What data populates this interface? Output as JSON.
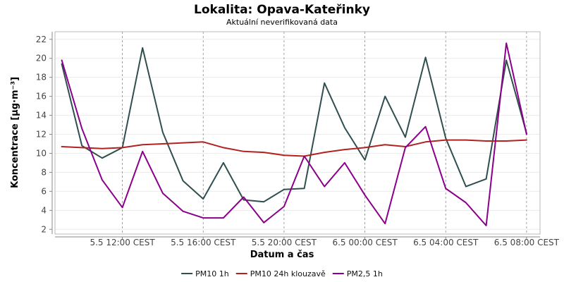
{
  "chart_data": {
    "type": "line",
    "title": "Lokalita: Opava-Kateřinky",
    "subtitle": "Aktuální neverifikovaná data",
    "xlabel": "Datum a čas",
    "ylabel": "Koncentrace [µg·m⁻³]",
    "ylim": [
      1.5,
      22.8
    ],
    "y_ticks": [
      2,
      4,
      6,
      8,
      10,
      12,
      14,
      16,
      18,
      20,
      22
    ],
    "x": [
      "2024-05-05T09:00",
      "2024-05-05T10:00",
      "2024-05-05T11:00",
      "2024-05-05T12:00",
      "2024-05-05T13:00",
      "2024-05-05T14:00",
      "2024-05-05T15:00",
      "2024-05-05T16:00",
      "2024-05-05T17:00",
      "2024-05-05T18:00",
      "2024-05-05T19:00",
      "2024-05-05T20:00",
      "2024-05-05T21:00",
      "2024-05-05T22:00",
      "2024-05-05T23:00",
      "2024-05-06T00:00",
      "2024-05-06T01:00",
      "2024-05-06T02:00",
      "2024-05-06T03:00",
      "2024-05-06T04:00",
      "2024-05-06T05:00",
      "2024-05-06T06:00",
      "2024-05-06T07:00",
      "2024-05-06T08:00"
    ],
    "xlim": [
      "2024-05-05T08:40",
      "2024-05-06T08:40"
    ],
    "x_ticks": [
      {
        "x": "2024-05-05T12:00",
        "label": "5.5 12:00 CEST"
      },
      {
        "x": "2024-05-05T16:00",
        "label": "5.5 16:00 CEST"
      },
      {
        "x": "2024-05-05T20:00",
        "label": "5.5 20:00 CEST"
      },
      {
        "x": "2024-05-06T00:00",
        "label": "6.5 00:00 CEST"
      },
      {
        "x": "2024-05-06T04:00",
        "label": "6.5 04:00 CEST"
      },
      {
        "x": "2024-05-06T08:00",
        "label": "6.5 08:00 CEST"
      }
    ],
    "grid": true,
    "legend_position": "bottom",
    "series": [
      {
        "name": "PM10 1h",
        "color": "#2f4f4f",
        "values": [
          19.4,
          10.8,
          9.5,
          10.6,
          21.1,
          12.2,
          7.1,
          5.2,
          9.0,
          5.1,
          4.9,
          6.2,
          6.3,
          17.4,
          12.7,
          9.3,
          16.0,
          11.7,
          20.1,
          11.6,
          6.5,
          7.3,
          19.8,
          12.1
        ]
      },
      {
        "name": "PM10 24h klouzavě",
        "color": "#b22222",
        "values": [
          10.7,
          10.6,
          10.5,
          10.6,
          10.9,
          11.0,
          11.1,
          11.2,
          10.6,
          10.2,
          10.1,
          9.8,
          9.7,
          10.1,
          10.4,
          10.6,
          10.9,
          10.7,
          11.2,
          11.4,
          11.4,
          11.3,
          11.3,
          11.4
        ]
      },
      {
        "name": "PM2,5 1h",
        "color": "#8b008b",
        "values": [
          19.8,
          12.6,
          7.2,
          4.3,
          10.2,
          5.8,
          3.9,
          3.2,
          3.2,
          5.4,
          2.7,
          4.4,
          9.7,
          6.5,
          9.0,
          5.6,
          2.6,
          10.6,
          12.8,
          6.3,
          4.8,
          2.4,
          21.6,
          12.0
        ]
      }
    ]
  }
}
